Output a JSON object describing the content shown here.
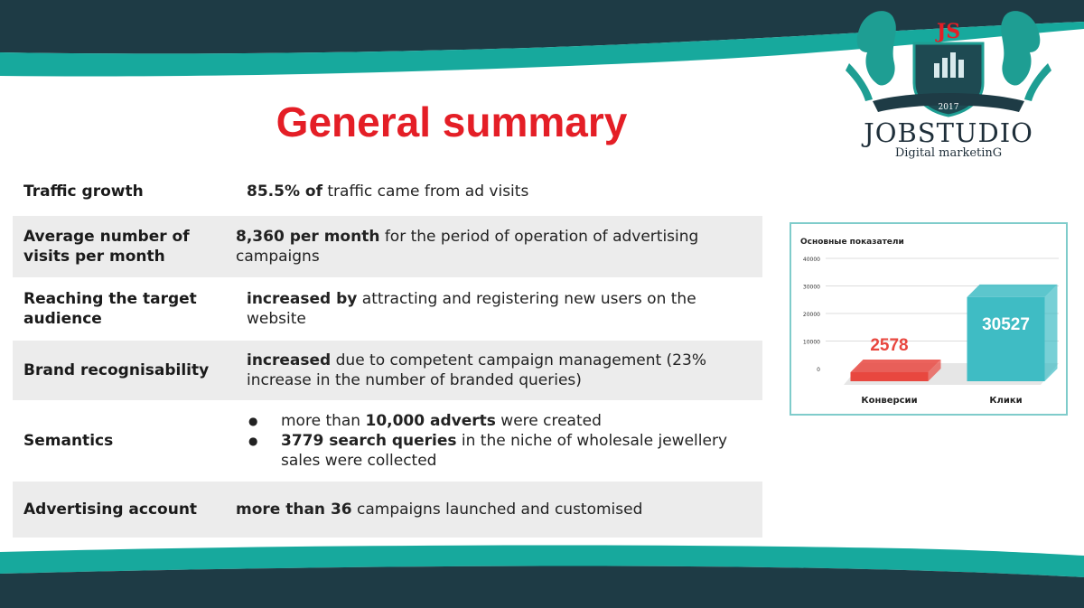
{
  "slide": {
    "title": "General summary",
    "logo": {
      "brand": "JOBSTUDIO",
      "tagline": "Digital marketinG",
      "monogram": "JS",
      "year": "2017"
    },
    "colors": {
      "title": "#e41e26",
      "banner_dark": "#1e3b45",
      "banner_teal": "#17a99d"
    }
  },
  "summary_rows": [
    {
      "label": "Traffic growth",
      "bold": "85.5% of",
      "text": " traffic came from ad visits"
    },
    {
      "label": "Average number of visits per month",
      "bold": "8,360 per month",
      "text": " for the period of operation of advertising campaigns"
    },
    {
      "label": "Reaching the target audience",
      "bold": "increased by",
      "text": " attracting and registering new users on the website"
    },
    {
      "label": "Brand recognisability",
      "bold": "increased",
      "text": " due to competent campaign management (23% increase in the number of branded queries)"
    },
    {
      "label": "Semantics",
      "bullets": [
        {
          "pre": "more than ",
          "bold": "10,000 adverts",
          "text": " were created"
        },
        {
          "pre": "",
          "bold": "3779 search queries",
          "text": " in the niche of wholesale jewellery sales were collected"
        }
      ]
    },
    {
      "label": "Advertising account",
      "bold": "more than 36",
      "text": " campaigns launched and customised"
    }
  ],
  "chart_data": {
    "type": "bar",
    "title": "Основные показатели",
    "categories": [
      "Конверсии",
      "Клики"
    ],
    "values": [
      2578,
      30527
    ],
    "ylim": [
      0,
      40000
    ],
    "yticks": [
      0,
      10000,
      20000,
      30000,
      40000
    ],
    "colors": [
      "#e8473f",
      "#3fbcc4"
    ],
    "grid": true
  }
}
